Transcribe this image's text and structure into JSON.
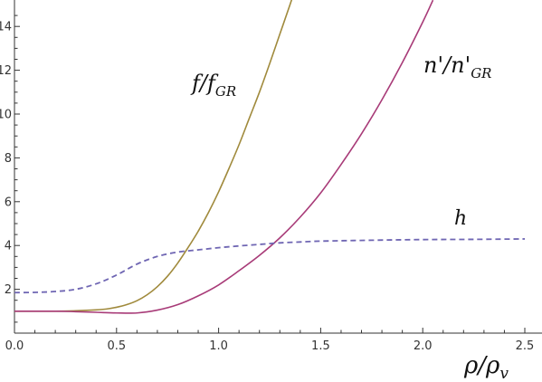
{
  "chart_data": {
    "type": "line",
    "xlim": [
      0,
      2.5
    ],
    "ylim": [
      0,
      15
    ],
    "x_ticks": [
      "0.0",
      "0.5",
      "1.0",
      "1.5",
      "2.0",
      "2.5"
    ],
    "y_ticks": [
      "2",
      "4",
      "6",
      "8",
      "10",
      "12",
      "14"
    ],
    "xlabel": "ρ/ρ",
    "xlabel_sub": "v",
    "grid": false,
    "series": [
      {
        "key": "f",
        "label_main": "f/f",
        "label_sub": "GR",
        "color": "#a08a3c",
        "dashed": false,
        "x": [
          0.0,
          0.2,
          0.3,
          0.4,
          0.45,
          0.5,
          0.55,
          0.6,
          0.65,
          0.7,
          0.75,
          0.8,
          0.85,
          0.9,
          0.95,
          1.0,
          1.05,
          1.1,
          1.15,
          1.2,
          1.25,
          1.3,
          1.35,
          1.4
        ],
        "y": [
          1.0,
          1.0,
          1.02,
          1.06,
          1.1,
          1.18,
          1.3,
          1.48,
          1.75,
          2.12,
          2.6,
          3.2,
          3.9,
          4.65,
          5.5,
          6.45,
          7.5,
          8.6,
          9.8,
          11.0,
          12.3,
          13.65,
          15.0,
          16.4
        ]
      },
      {
        "key": "n",
        "label_main": "n'/n'",
        "label_sub": "GR",
        "color": "#a83b78",
        "dashed": false,
        "x": [
          0.0,
          0.2,
          0.3,
          0.4,
          0.5,
          0.6,
          0.7,
          0.8,
          0.9,
          1.0,
          1.1,
          1.2,
          1.3,
          1.4,
          1.5,
          1.6,
          1.7,
          1.8,
          1.9,
          2.0,
          2.05
        ],
        "y": [
          1.0,
          1.0,
          0.98,
          0.95,
          0.92,
          0.92,
          1.05,
          1.3,
          1.7,
          2.2,
          2.85,
          3.55,
          4.35,
          5.3,
          6.4,
          7.7,
          9.1,
          10.65,
          12.35,
          14.2,
          15.2
        ]
      },
      {
        "key": "h",
        "label_main": "h",
        "label_sub": "",
        "color": "#6f66b3",
        "dashed": true,
        "x": [
          0.0,
          0.1,
          0.2,
          0.3,
          0.4,
          0.5,
          0.6,
          0.7,
          0.8,
          0.9,
          1.0,
          1.1,
          1.2,
          1.3,
          1.4,
          1.5,
          1.75,
          2.0,
          2.25,
          2.5
        ],
        "y": [
          1.85,
          1.86,
          1.9,
          2.0,
          2.25,
          2.65,
          3.15,
          3.5,
          3.7,
          3.8,
          3.9,
          3.98,
          4.05,
          4.12,
          4.16,
          4.2,
          4.24,
          4.27,
          4.28,
          4.3
        ]
      }
    ]
  }
}
